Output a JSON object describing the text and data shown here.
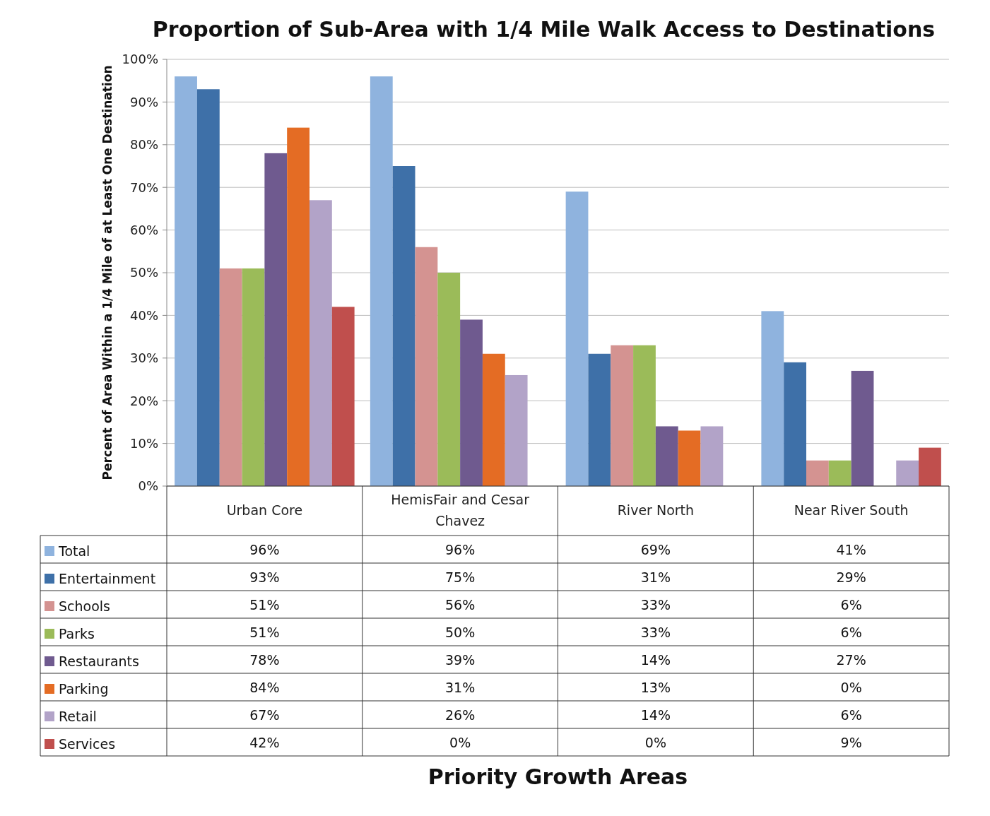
{
  "chart_data": {
    "type": "bar",
    "title": "Proportion of Sub-Area with 1/4 Mile Walk Access to Destinations",
    "annotations": [
      "Priority Growth Areas"
    ],
    "ylabel": "Percent of Area Within a 1/4 Mile of at Least One Destination",
    "categories": [
      "Urban Core",
      "HemisFair and Cesar Chavez",
      "River North",
      "Near River South"
    ],
    "series": [
      {
        "name": "Total",
        "color": "#8fb3de",
        "values": [
          96,
          96,
          69,
          41
        ],
        "value_labels": [
          "96%",
          "96%",
          "69%",
          "41%"
        ]
      },
      {
        "name": "Entertainment",
        "color": "#3e70a8",
        "values": [
          93,
          75,
          31,
          29
        ],
        "value_labels": [
          "93%",
          "75%",
          "31%",
          "29%"
        ]
      },
      {
        "name": "Schools",
        "color": "#d49391",
        "values": [
          51,
          56,
          33,
          6
        ],
        "value_labels": [
          "51%",
          "56%",
          "33%",
          "6%"
        ]
      },
      {
        "name": "Parks",
        "color": "#9bbb59",
        "values": [
          51,
          50,
          33,
          6
        ],
        "value_labels": [
          "51%",
          "50%",
          "33%",
          "6%"
        ]
      },
      {
        "name": "Restaurants",
        "color": "#6f5a8f",
        "values": [
          78,
          39,
          14,
          27
        ],
        "value_labels": [
          "78%",
          "39%",
          "14%",
          "27%"
        ]
      },
      {
        "name": "Parking",
        "color": "#e46c24",
        "values": [
          84,
          31,
          13,
          0
        ],
        "value_labels": [
          "84%",
          "31%",
          "13%",
          "0%"
        ]
      },
      {
        "name": "Retail",
        "color": "#b2a3c8",
        "values": [
          67,
          26,
          14,
          6
        ],
        "value_labels": [
          "67%",
          "26%",
          "14%",
          "6%"
        ]
      },
      {
        "name": "Services",
        "color": "#c04f4d",
        "values": [
          42,
          0,
          0,
          9
        ],
        "value_labels": [
          "42%",
          "0%",
          "0%",
          "9%"
        ]
      }
    ],
    "ylim": [
      0,
      100
    ],
    "yticks": [
      {
        "value": 0,
        "label": "0%"
      },
      {
        "value": 10,
        "label": "10%"
      },
      {
        "value": 20,
        "label": "20%"
      },
      {
        "value": 30,
        "label": "30%"
      },
      {
        "value": 40,
        "label": "40%"
      },
      {
        "value": 50,
        "label": "50%"
      },
      {
        "value": 60,
        "label": "60%"
      },
      {
        "value": 70,
        "label": "70%"
      },
      {
        "value": 80,
        "label": "80%"
      },
      {
        "value": 90,
        "label": "90%"
      },
      {
        "value": 100,
        "label": "100%"
      }
    ],
    "grid": "y",
    "legend": "bottom"
  }
}
